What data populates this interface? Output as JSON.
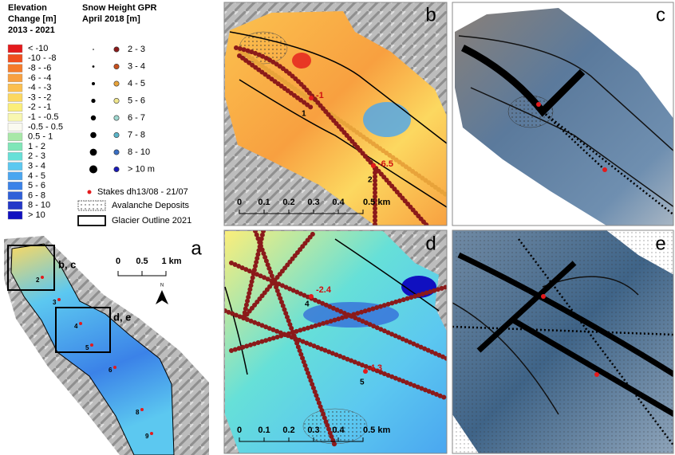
{
  "legend_elevation": {
    "title": [
      "Elevation",
      "Change [m]",
      "2013 - 2021"
    ],
    "classes": [
      {
        "label": "< -10",
        "color": "#e41a1c"
      },
      {
        "label": "-10 - -8",
        "color": "#f04e1e"
      },
      {
        "label": "-8 - -6",
        "color": "#f57b2a"
      },
      {
        "label": "-6 - -4",
        "color": "#f8a040"
      },
      {
        "label": "-4 - -3",
        "color": "#fbbf4f"
      },
      {
        "label": "-3 - -2",
        "color": "#fcd860"
      },
      {
        "label": "-2 - -1",
        "color": "#fbee7a"
      },
      {
        "label": "-1 - -0.5",
        "color": "#f8f7b0"
      },
      {
        "label": "-0.5 - 0.5",
        "color": "#fafaf0"
      },
      {
        "label": "0.5 - 1",
        "color": "#a8e8a8"
      },
      {
        "label": "1 - 2",
        "color": "#7fe6b8"
      },
      {
        "label": "2 - 3",
        "color": "#66e0d8"
      },
      {
        "label": "3 - 4",
        "color": "#5cc8f0"
      },
      {
        "label": "4 - 5",
        "color": "#4aa6f0"
      },
      {
        "label": "5 - 6",
        "color": "#3b82e8"
      },
      {
        "label": "6 - 8",
        "color": "#2f5fd8"
      },
      {
        "label": "8 - 10",
        "color": "#2438c8"
      },
      {
        "label": "> 10",
        "color": "#1010c0"
      }
    ]
  },
  "legend_snow": {
    "title": [
      "Snow Height GPR",
      "April 2018  [m]"
    ],
    "classes": [
      {
        "label": "2 - 3",
        "color": "#8b1a1a"
      },
      {
        "label": "3 - 4",
        "color": "#c8501e"
      },
      {
        "label": "4 - 5",
        "color": "#e8a33a"
      },
      {
        "label": "5 - 6",
        "color": "#f0e68c"
      },
      {
        "label": "6 - 7",
        "color": "#9fd8d0"
      },
      {
        "label": "7 - 8",
        "color": "#5ab4c8"
      },
      {
        "label": "8 - 10",
        "color": "#3a6fc4"
      },
      {
        "label": "> 10 m",
        "color": "#1a1ab8"
      }
    ]
  },
  "legend_other": {
    "stakes": "Stakes dh13/08 - 21/07",
    "avalanche": "Avalanche Deposits",
    "outline": "Glacier Outline 2021"
  },
  "panels": {
    "a": {
      "label": "a",
      "boxes": [
        "b, c",
        "d, e"
      ],
      "scale": [
        "0",
        "0.5",
        "1 km"
      ],
      "north": "N",
      "stakes": [
        "2",
        "3",
        "4",
        "5",
        "6",
        "8",
        "9"
      ]
    },
    "b": {
      "label": "b",
      "stakes": [
        {
          "id": "1",
          "value": "-1"
        },
        {
          "id": "2",
          "value": "-6.5"
        }
      ],
      "scale": [
        "0",
        "0.1",
        "0.2",
        "0.3",
        "0.4",
        "0.5 km"
      ]
    },
    "c": {
      "label": "c"
    },
    "d": {
      "label": "d",
      "stakes": [
        {
          "id": "4",
          "value": "-2.4"
        },
        {
          "id": "5",
          "value": "-4.3"
        }
      ],
      "scale": [
        "0",
        "0.1",
        "0.2",
        "0.3",
        "0.4",
        "0.5 km"
      ]
    },
    "e": {
      "label": "e"
    }
  }
}
